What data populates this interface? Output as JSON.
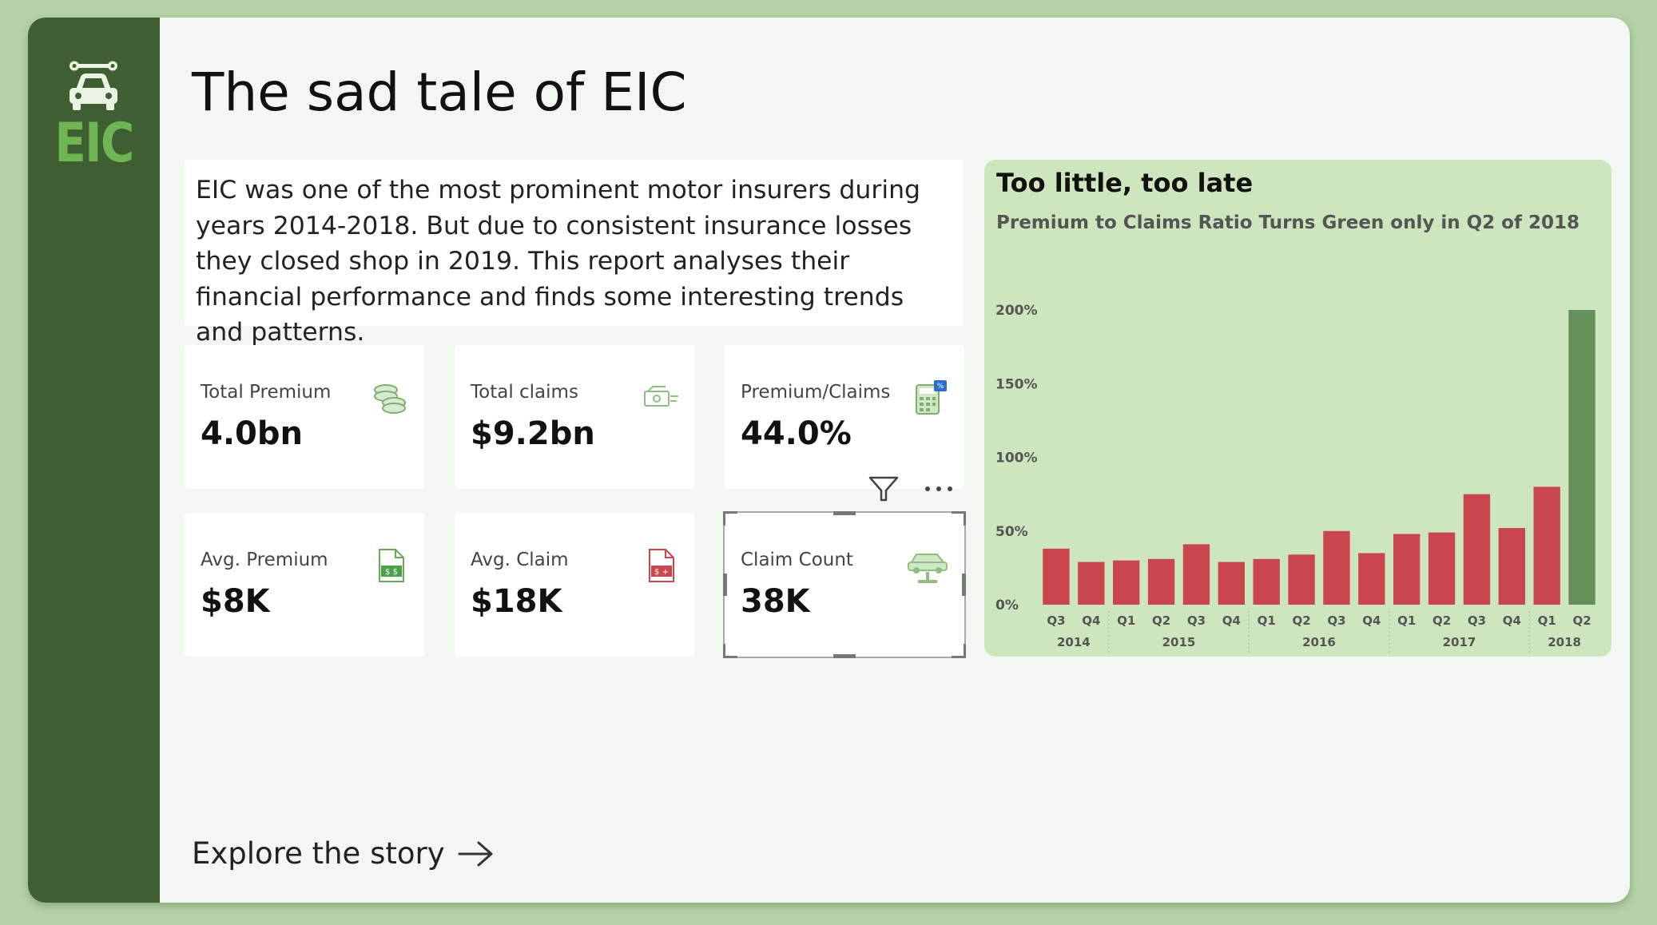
{
  "brand": {
    "logo_text": "EIC"
  },
  "header": {
    "title": "The sad tale of EIC"
  },
  "intro": {
    "text": "EIC was one of the most prominent motor insurers during years 2014-2018. But due to consistent insurance losses they closed shop in 2019. This report analyses their financial performance and finds some interesting trends and patterns."
  },
  "cards": [
    {
      "label": "Total Premium",
      "value": "4.0bn",
      "icon": "coins-icon"
    },
    {
      "label": "Total claims",
      "value": "$9.2bn",
      "icon": "cash-icon"
    },
    {
      "label": "Premium/Claims",
      "value": "44.0%",
      "icon": "calculator-icon"
    },
    {
      "label": "Avg. Premium",
      "value": "$8K",
      "icon": "document-dollar-icon"
    },
    {
      "label": "Avg. Claim",
      "value": "$18K",
      "icon": "document-dollar-red-icon"
    },
    {
      "label": "Claim Count",
      "value": "38K",
      "icon": "car-lift-icon"
    }
  ],
  "footer": {
    "explore_label": "Explore the story"
  },
  "colors": {
    "sidebar": "#3e5f31",
    "accent": "#6fb553",
    "bar_loss": "#c9464f",
    "bar_gain": "#64915a",
    "chart_bg": "#cde6bd"
  },
  "chart_data": {
    "type": "bar",
    "title": "Too little, too late",
    "subtitle": "Premium to Claims Ratio Turns Green only in Q2 of 2018",
    "categories": [
      "Q3",
      "Q4",
      "Q1",
      "Q2",
      "Q3",
      "Q4",
      "Q1",
      "Q2",
      "Q3",
      "Q4",
      "Q1",
      "Q2",
      "Q3",
      "Q4",
      "Q1",
      "Q2"
    ],
    "years": [
      {
        "label": "2014",
        "span": 2
      },
      {
        "label": "2015",
        "span": 4
      },
      {
        "label": "2016",
        "span": 4
      },
      {
        "label": "2017",
        "span": 4
      },
      {
        "label": "2018",
        "span": 2
      }
    ],
    "values": [
      38,
      29,
      30,
      31,
      41,
      29,
      31,
      34,
      50,
      35,
      48,
      49,
      75,
      52,
      80,
      200
    ],
    "ylim": [
      0,
      200
    ],
    "yticks": [
      "0%",
      "50%",
      "100%",
      "150%",
      "200%"
    ]
  }
}
